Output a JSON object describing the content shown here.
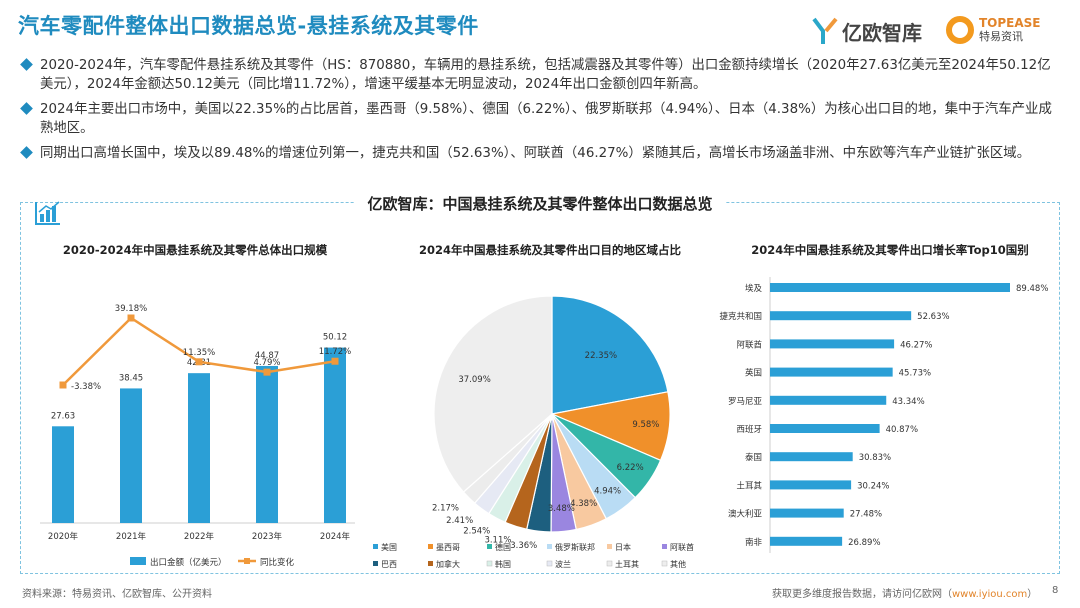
{
  "page": {
    "title": "汽车零配件整体出口数据总览-悬挂系统及其零件",
    "logo1_text": "亿欧智库",
    "logo2_line1": "TOPEASE",
    "logo2_line2": "特易资讯",
    "bullets": [
      "2020-2024年，汽车零配件悬挂系统及其零件（HS：870880，车辆用的悬挂系统，包括减震器及其零件等）出口金额持续增长（2020年27.63亿美元至2024年50.12亿美元），2024年金额达50.12美元（同比增11.72%），增速平缓基本无明显波动，2024年出口金额创四年新高。",
      "2024年主要出口市场中，美国以22.35%的占比居首，墨西哥（9.58%）、德国（6.22%）、俄罗斯联邦（4.94%）、日本（4.38%）为核心出口目的地，集中于汽车产业成熟地区。",
      "同期出口高增长国中，埃及以89.48%的增速位列第一，捷克共和国（52.63%）、阿联酋（46.27%）紧随其后，高增长市场涵盖非洲、中东欧等汽车产业链扩张区域。"
    ],
    "panel_title": "亿欧智库：中国悬挂系统及其零件整体出口数据总览",
    "footer_source": "资料来源：特易资讯、亿欧智库、公开资料",
    "footer_more": "获取更多维度报告数据，请访问亿欧网（",
    "footer_url": "www.iyiou.com",
    "footer_close": "）",
    "page_number": "8",
    "colors": {
      "accent": "#1f8bbf",
      "bar": "#2b9fd6",
      "line": "#f0993b"
    }
  },
  "chart_data": [
    {
      "type": "bar",
      "title": "2020-2024年中国悬挂系统及其零件总体出口规模",
      "categories": [
        "2020年",
        "2021年",
        "2022年",
        "2023年",
        "2024年"
      ],
      "series": [
        {
          "name": "出口金额（亿美元）",
          "type": "bar",
          "values": [
            27.63,
            38.45,
            42.81,
            44.87,
            50.12
          ],
          "labels": [
            "27.63",
            "38.45",
            "42.81",
            "44.87",
            "50.12"
          ]
        },
        {
          "name": "同比变化",
          "type": "line",
          "values": [
            -3.38,
            39.18,
            11.35,
            4.79,
            11.72
          ],
          "labels": [
            "-3.38%",
            "39.18%",
            "11.35%",
            "4.79%",
            "11.72%"
          ]
        }
      ]
    },
    {
      "type": "pie",
      "title": "2024年中国悬挂系统及其零件出口目的地区域占比",
      "labels": [
        "美国",
        "墨西哥",
        "德国",
        "俄罗斯联邦",
        "日本",
        "阿联酋",
        "巴西",
        "加拿大",
        "韩国",
        "波兰",
        "土耳其",
        "其他"
      ],
      "values": [
        22.35,
        9.58,
        6.22,
        4.94,
        4.38,
        3.48,
        3.36,
        3.11,
        2.54,
        2.41,
        2.17,
        37.09
      ],
      "value_labels": [
        "22.35%",
        "9.58%",
        "6.22%",
        "4.94%",
        "4.38%",
        "3.48%",
        "3.36%",
        "3.11%",
        "2.54%",
        "2.41%",
        "2.17%",
        "37.09%"
      ],
      "colors": [
        "#2b9fd6",
        "#f0902a",
        "#33b6a8",
        "#b9dcf4",
        "#f8c9a0",
        "#9a86e0",
        "#1d5f7f",
        "#b5651d",
        "#d9f0e8",
        "#e6e9f4",
        "#ececec",
        "#eeeeee"
      ]
    },
    {
      "type": "bar",
      "orientation": "horizontal",
      "title": "2024年中国悬挂系统及其零件出口增长率Top10国别",
      "categories": [
        "埃及",
        "捷克共和国",
        "阿联酋",
        "英国",
        "罗马尼亚",
        "西班牙",
        "泰国",
        "土耳其",
        "澳大利亚",
        "南非"
      ],
      "values": [
        89.48,
        52.63,
        46.27,
        45.73,
        43.34,
        40.87,
        30.83,
        30.24,
        27.48,
        26.89
      ],
      "labels": [
        "89.48%",
        "52.63%",
        "46.27%",
        "45.73%",
        "43.34%",
        "40.87%",
        "30.83%",
        "30.24%",
        "27.48%",
        "26.89%"
      ]
    }
  ]
}
